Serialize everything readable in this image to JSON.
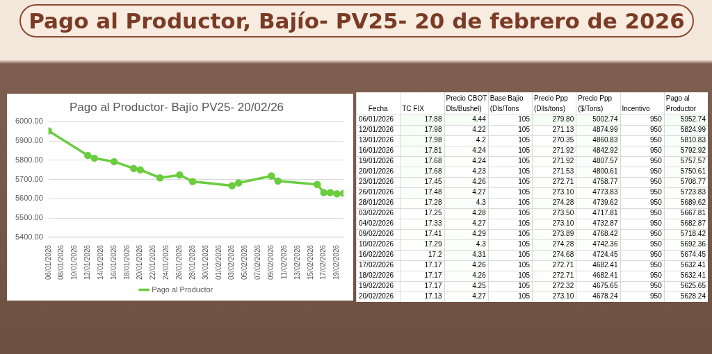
{
  "chart_data": [
    {
      "type": "other",
      "title": "Pago al Productor, Bajío- PV25- 20 de febrero de 2026"
    },
    {
      "type": "line",
      "title": "Pago al Productor- Bajío PV25- 20/02/26",
      "x": [
        "2026-01-06",
        "2026-01-12",
        "2026-01-13",
        "2026-01-16",
        "2026-01-19",
        "2026-01-20",
        "2026-01-23",
        "2026-01-26",
        "2026-01-28",
        "2026-02-03",
        "2026-02-04",
        "2026-02-09",
        "2026-02-10",
        "2026-02-16",
        "2026-02-17",
        "2026-02-18",
        "2026-02-19",
        "2026-02-20"
      ],
      "series": [
        {
          "name": "Pago al Productor",
          "color": "#6acd3e",
          "values": [
            5952.74,
            5824.99,
            5810.83,
            5792.92,
            5757.57,
            5750.61,
            5708.77,
            5723.83,
            5689.62,
            5667.81,
            5682.87,
            5718.42,
            5692.36,
            5674.45,
            5632.41,
            5632.41,
            5625.65,
            5628.24
          ]
        }
      ],
      "xlim": [
        "2026-01-06",
        "2026-02-20"
      ],
      "xticks": [
        {
          "value": "2026-01-06",
          "label": "06/01/2026"
        },
        {
          "value": "2026-01-08",
          "label": "08/01/2026"
        },
        {
          "value": "2026-01-10",
          "label": "10/01/2026"
        },
        {
          "value": "2026-01-12",
          "label": "12/01/2026"
        },
        {
          "value": "2026-01-14",
          "label": "14/01/2026"
        },
        {
          "value": "2026-01-16",
          "label": "16/01/2026"
        },
        {
          "value": "2026-01-18",
          "label": "18/01/2026"
        },
        {
          "value": "2026-01-20",
          "label": "20/01/2026"
        },
        {
          "value": "2026-01-22",
          "label": "22/01/2026"
        },
        {
          "value": "2026-01-24",
          "label": "24/01/2026"
        },
        {
          "value": "2026-01-26",
          "label": "26/01/2026"
        },
        {
          "value": "2026-01-28",
          "label": "28/01/2026"
        },
        {
          "value": "2026-01-30",
          "label": "30/01/2026"
        },
        {
          "value": "2026-02-01",
          "label": "01/02/2026"
        },
        {
          "value": "2026-02-03",
          "label": "03/02/2026"
        },
        {
          "value": "2026-02-05",
          "label": "05/02/2026"
        },
        {
          "value": "2026-02-07",
          "label": "07/02/2026"
        },
        {
          "value": "2026-02-09",
          "label": "09/02/2026"
        },
        {
          "value": "2026-02-11",
          "label": "11/02/2026"
        },
        {
          "value": "2026-02-13",
          "label": "13/02/2026"
        },
        {
          "value": "2026-02-15",
          "label": "15/02/2026"
        },
        {
          "value": "2026-02-17",
          "label": "17/02/2026"
        },
        {
          "value": "2026-02-19",
          "label": "19/02/2026"
        }
      ],
      "ylim": [
        5400,
        6000
      ],
      "yticks": [
        {
          "value": 5400,
          "label": "5400.00"
        },
        {
          "value": 5500,
          "label": "5500.00"
        },
        {
          "value": 5600,
          "label": "5600.00"
        },
        {
          "value": 5700,
          "label": "5700.00"
        },
        {
          "value": 5800,
          "label": "5800.00"
        },
        {
          "value": 5900,
          "label": "5900.00"
        },
        {
          "value": 6000,
          "label": "6000.00"
        }
      ],
      "grid": "y",
      "legend": "bottom",
      "marker": "circle",
      "line_style": "solid"
    },
    {
      "type": "heatmap",
      "ylabel": "Fecha",
      "categories": [
        "TC FIX",
        "Precio CBOT Dls/Bushel)",
        "Base Bajio (Dls/Tons",
        "Precio Ppp (Dlls/tons)",
        "Precio Ppp ($/Tons)",
        "Incentivo",
        "Pago al Productor"
      ],
      "y_categories": [
        "06/01/2026",
        "12/01/2026",
        "13/01/2026",
        "16/01/2026",
        "19/01/2026",
        "20/01/2026",
        "23/01/2026",
        "26/01/2026",
        "28/01/2026",
        "03/02/2026",
        "04/02/2026",
        "09/02/2026",
        "10/02/2026",
        "16/02/2026",
        "17/02/2026",
        "18/02/2026",
        "19/02/2026",
        "20/02/2026"
      ],
      "cells": [
        [
          17.88,
          4.44,
          105,
          279.8,
          5002.74,
          950,
          5952.74
        ],
        [
          17.98,
          4.22,
          105,
          271.13,
          4874.99,
          950,
          5824.99
        ],
        [
          17.98,
          4.2,
          105,
          270.35,
          4860.83,
          950,
          5810.83
        ],
        [
          17.81,
          4.24,
          105,
          271.92,
          4842.92,
          950,
          5792.92
        ],
        [
          17.68,
          4.24,
          105,
          271.92,
          4807.57,
          950,
          5757.57
        ],
        [
          17.68,
          4.23,
          105,
          271.53,
          4800.61,
          950,
          5750.61
        ],
        [
          17.45,
          4.26,
          105,
          272.71,
          4758.77,
          950,
          5708.77
        ],
        [
          17.48,
          4.27,
          105,
          273.1,
          4773.83,
          950,
          5723.83
        ],
        [
          17.28,
          4.3,
          105,
          274.28,
          4739.62,
          950,
          5689.62
        ],
        [
          17.25,
          4.28,
          105,
          273.5,
          4717.81,
          950,
          5667.81
        ],
        [
          17.33,
          4.27,
          105,
          273.1,
          4732.87,
          950,
          5682.87
        ],
        [
          17.41,
          4.29,
          105,
          273.89,
          4768.42,
          950,
          5718.42
        ],
        [
          17.29,
          4.3,
          105,
          274.28,
          4742.36,
          950,
          5692.36
        ],
        [
          17.2,
          4.31,
          105,
          274.68,
          4724.45,
          950,
          5674.45
        ],
        [
          17.17,
          4.26,
          105,
          272.71,
          4682.41,
          950,
          5632.41
        ],
        [
          17.17,
          4.26,
          105,
          272.71,
          4682.41,
          950,
          5632.41
        ],
        [
          17.17,
          4.25,
          105,
          272.32,
          4675.65,
          950,
          5625.65
        ],
        [
          17.13,
          4.27,
          105,
          273.1,
          4678.24,
          950,
          5628.24
        ]
      ],
      "cell_labels": [
        [
          "17.88",
          "4.44",
          "105",
          "279.80",
          "5002.74",
          "950",
          "5952.74"
        ],
        [
          "17.98",
          "4.22",
          "105",
          "271.13",
          "4874.99",
          "950",
          "5824.99"
        ],
        [
          "17.98",
          "4.2",
          "105",
          "270.35",
          "4860.83",
          "950",
          "5810.83"
        ],
        [
          "17.81",
          "4.24",
          "105",
          "271.92",
          "4842.92",
          "950",
          "5792.92"
        ],
        [
          "17.68",
          "4.24",
          "105",
          "271.92",
          "4807.57",
          "950",
          "5757.57"
        ],
        [
          "17.68",
          "4.23",
          "105",
          "271.53",
          "4800.61",
          "950",
          "5750.61"
        ],
        [
          "17.45",
          "4.26",
          "105",
          "272.71",
          "4758.77",
          "950",
          "5708.77"
        ],
        [
          "17.48",
          "4.27",
          "105",
          "273.10",
          "4773.83",
          "950",
          "5723.83"
        ],
        [
          "17.28",
          "4.3",
          "105",
          "274.28",
          "4739.62",
          "950",
          "5689.62"
        ],
        [
          "17.25",
          "4.28",
          "105",
          "273.50",
          "4717.81",
          "950",
          "5667.81"
        ],
        [
          "17.33",
          "4.27",
          "105",
          "273.10",
          "4732.87",
          "950",
          "5682.87"
        ],
        [
          "17.41",
          "4.29",
          "105",
          "273.89",
          "4768.42",
          "950",
          "5718.42"
        ],
        [
          "17.29",
          "4.3",
          "105",
          "274.28",
          "4742.36",
          "950",
          "5692.36"
        ],
        [
          "17.2",
          "4.31",
          "105",
          "274.68",
          "4724.45",
          "950",
          "5674.45"
        ],
        [
          "17.17",
          "4.26",
          "105",
          "272.71",
          "4682.41",
          "950",
          "5632.41"
        ],
        [
          "17.17",
          "4.26",
          "105",
          "272.71",
          "4682.41",
          "950",
          "5632.41"
        ],
        [
          "17.17",
          "4.25",
          "105",
          "272.32",
          "4675.65",
          "950",
          "5625.65"
        ],
        [
          "17.13",
          "4.27",
          "105",
          "273.10",
          "4678.24",
          "950",
          "5628.24"
        ]
      ]
    }
  ]
}
